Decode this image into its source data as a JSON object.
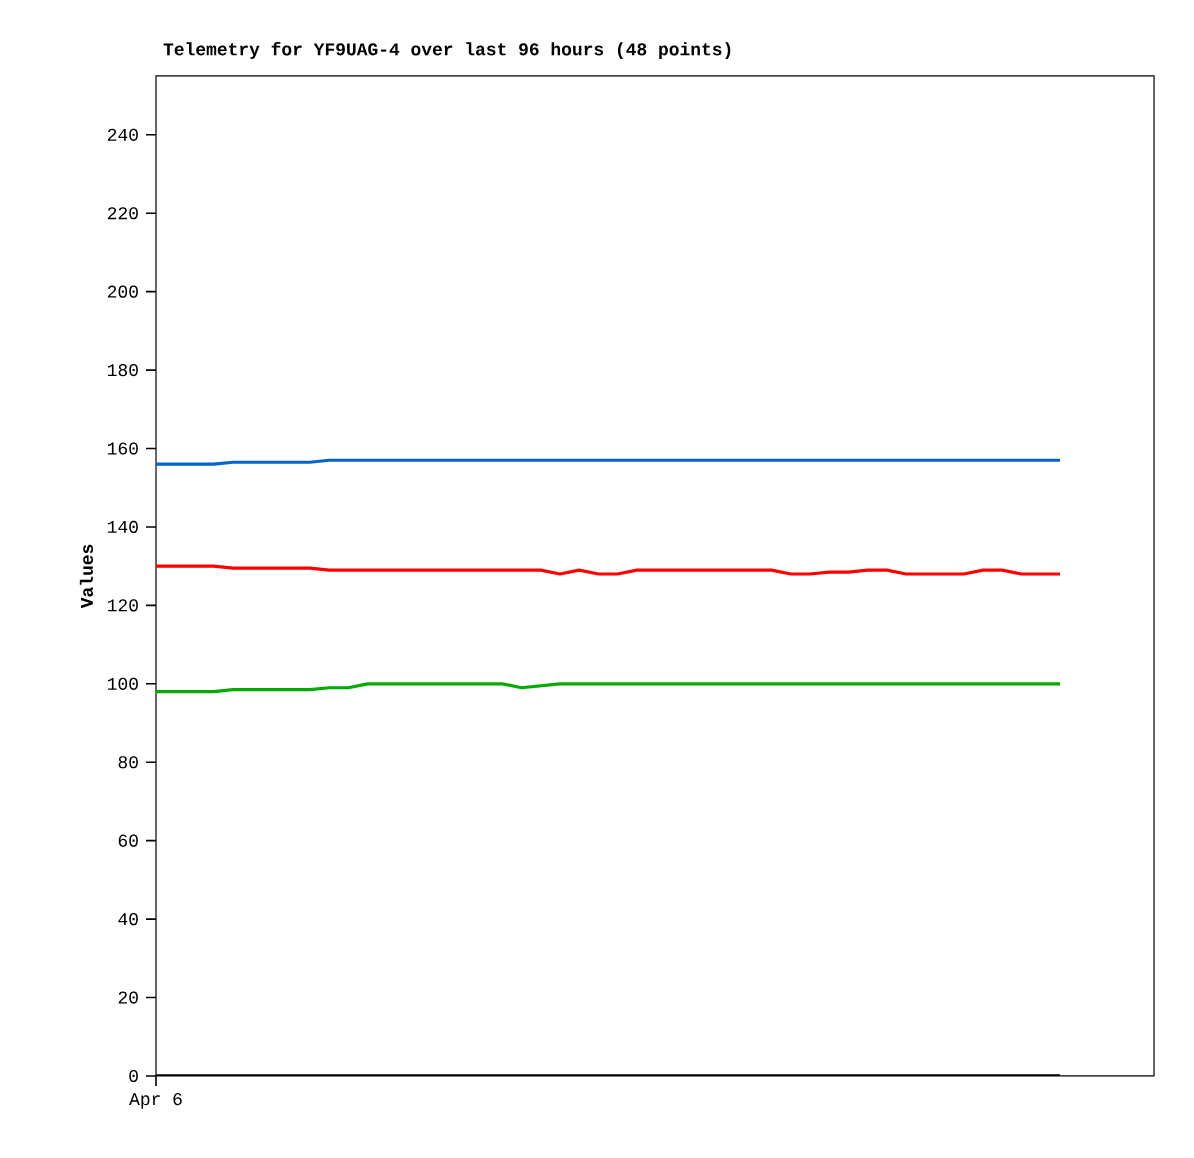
{
  "chart_data": {
    "type": "line",
    "title": "Telemetry for YF9UAG-4 over last 96 hours (48 points)",
    "ylabel": "Values",
    "categories": [
      "Apr 6",
      null,
      null,
      null,
      null,
      null,
      null,
      null,
      null,
      null,
      null,
      null,
      null,
      null,
      null,
      null,
      null,
      null,
      null,
      null,
      null,
      null,
      null,
      null,
      null,
      null,
      null,
      null,
      null,
      null,
      null,
      null,
      null,
      null,
      null,
      null,
      null,
      null,
      null,
      null,
      null,
      null,
      null,
      null,
      null,
      null,
      null,
      null
    ],
    "ylim": [
      0,
      255
    ],
    "yticks": [
      0,
      20,
      40,
      60,
      80,
      100,
      120,
      140,
      160,
      180,
      200,
      220,
      240
    ],
    "grid": false,
    "marker": "none",
    "line_style": "solid",
    "series": [
      {
        "color": "#0066cc",
        "values": [
          156,
          156,
          156,
          156,
          156.5,
          156.5,
          156.5,
          156.5,
          156.5,
          157,
          157,
          157,
          157,
          157,
          157,
          157,
          157,
          157,
          157,
          157,
          157,
          157,
          157,
          157,
          157,
          157,
          157,
          157,
          157,
          157,
          157,
          157,
          157,
          157,
          157,
          157,
          157,
          157,
          157,
          157,
          157,
          157,
          157,
          157,
          157,
          157,
          157,
          157
        ]
      },
      {
        "color": "#ff0000",
        "values": [
          130,
          130,
          130,
          130,
          129.5,
          129.5,
          129.5,
          129.5,
          129.5,
          129,
          129,
          129,
          129,
          129,
          129,
          129,
          129,
          129,
          129,
          129,
          129,
          128,
          129,
          128,
          128,
          129,
          129,
          129,
          129,
          129,
          129,
          129,
          129,
          128,
          128,
          128.5,
          128.5,
          129,
          129,
          128,
          128,
          128,
          128,
          129,
          129,
          128,
          128,
          128
        ]
      },
      {
        "color": "#00aa00",
        "values": [
          98,
          98,
          98,
          98,
          98.5,
          98.5,
          98.5,
          98.5,
          98.5,
          99,
          99,
          100,
          100,
          100,
          100,
          100,
          100,
          100,
          100,
          99,
          99.5,
          100,
          100,
          100,
          100,
          100,
          100,
          100,
          100,
          100,
          100,
          100,
          100,
          100,
          100,
          100,
          100,
          100,
          100,
          100,
          100,
          100,
          100,
          100,
          100,
          100,
          100,
          100
        ]
      },
      {
        "color": "#000000",
        "values": [
          0,
          0,
          0,
          0,
          0,
          0,
          0,
          0,
          0,
          0,
          0,
          0,
          0,
          0,
          0,
          0,
          0,
          0,
          0,
          0,
          0,
          0,
          0,
          0,
          0,
          0,
          0,
          0,
          0,
          0,
          0,
          0,
          0,
          0,
          0,
          0,
          0,
          0,
          0,
          0,
          0,
          0,
          0,
          0,
          0,
          0,
          0,
          0
        ]
      }
    ]
  }
}
